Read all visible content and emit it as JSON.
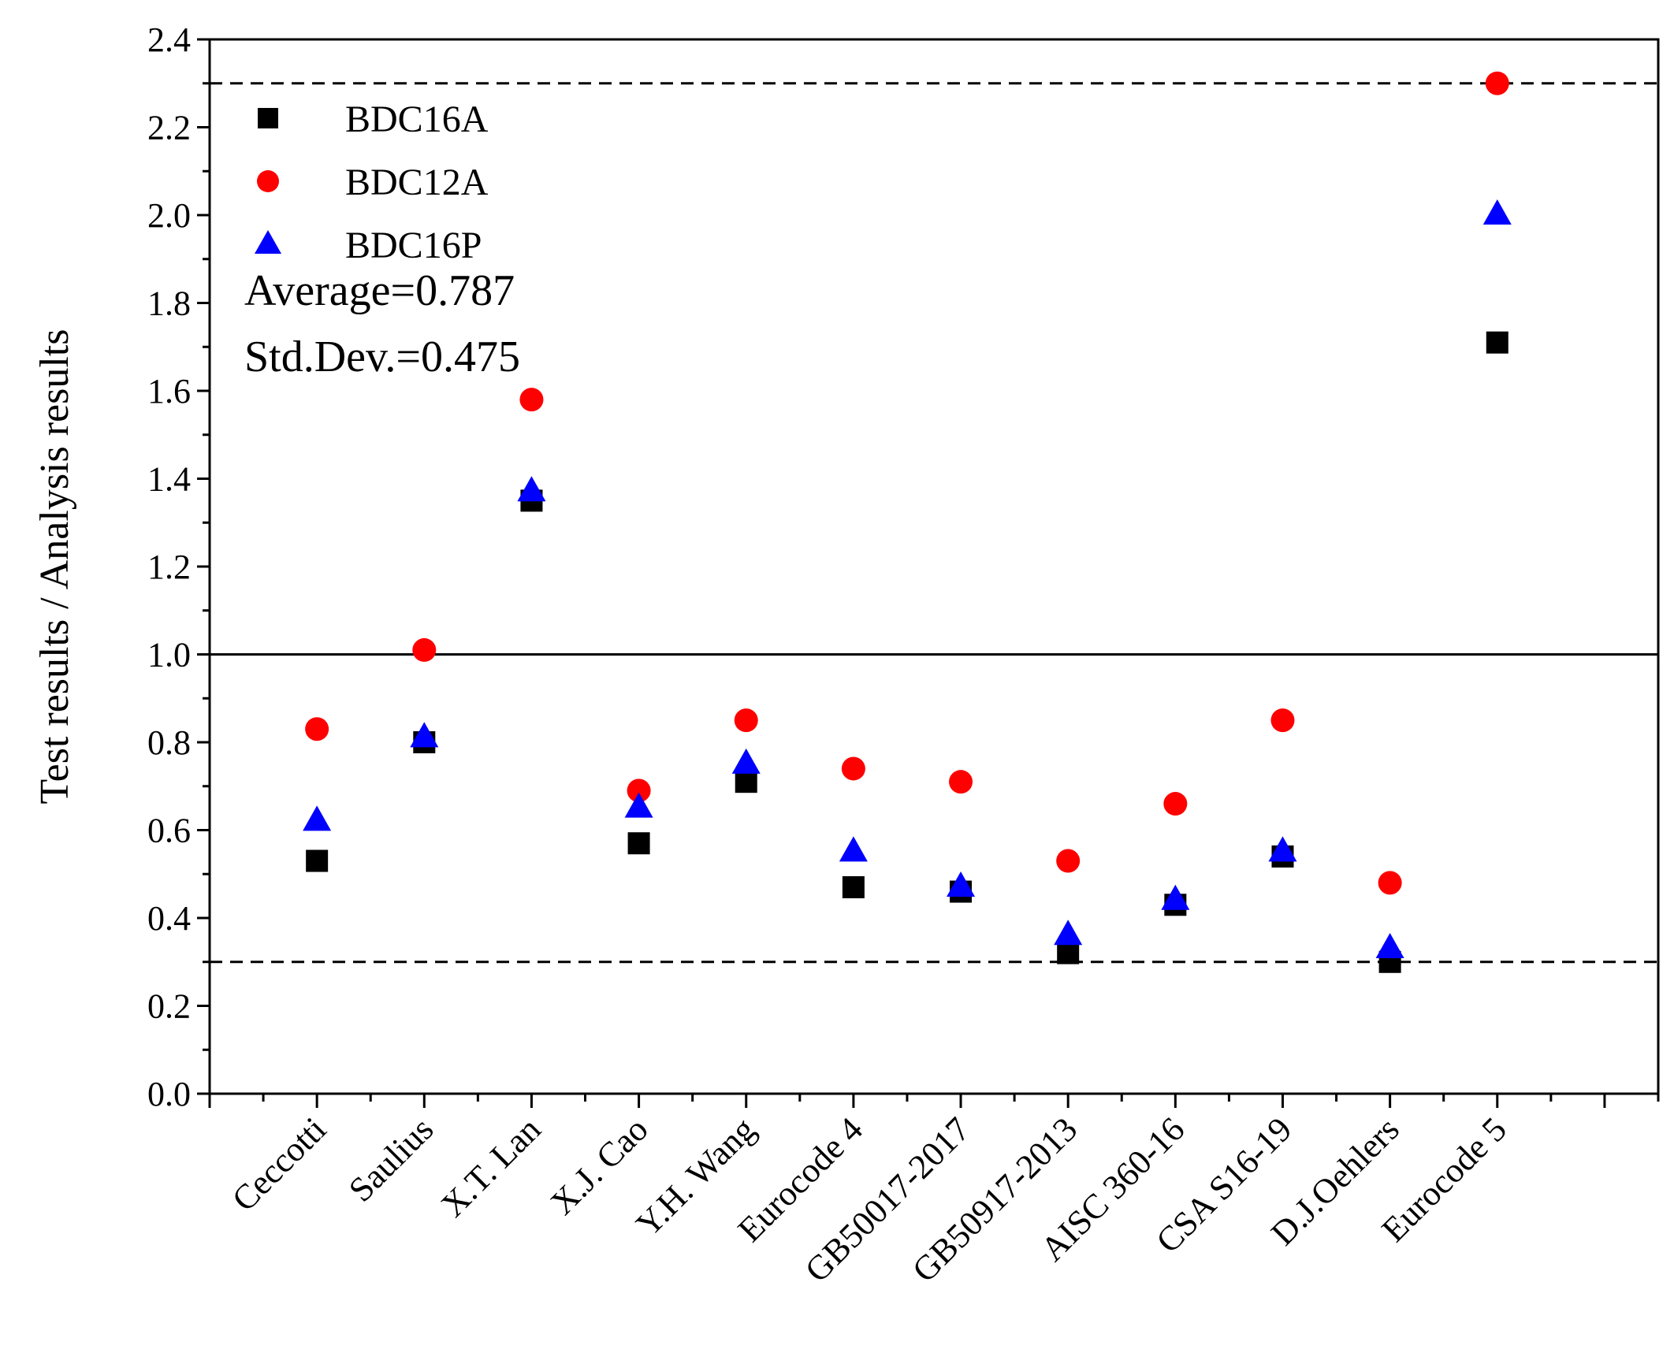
{
  "chart_data": {
    "type": "scatter",
    "title": "",
    "xlabel": "",
    "ylabel": "Test results / Analysis results",
    "ylim": [
      0,
      2.4
    ],
    "yticks": [
      "0.0",
      "0.2",
      "0.4",
      "0.6",
      "0.8",
      "1.0",
      "1.2",
      "1.4",
      "1.6",
      "1.8",
      "2.0",
      "2.2",
      "2.4"
    ],
    "categories": [
      "Ceccotti",
      "Saulius",
      "X.T. Lan",
      "X.J. Cao",
      "Y.H. Wang",
      "Eurocode 4",
      "GB50017-2017",
      "GB50917-2013",
      "AISC 360-16",
      "CSA S16-19",
      "D.J.Oehlers",
      "Eurocode 5"
    ],
    "series": [
      {
        "name": "BDC16A",
        "marker": "square",
        "color": "#000000",
        "values": [
          0.53,
          0.8,
          1.35,
          0.57,
          0.71,
          0.47,
          0.46,
          0.32,
          0.43,
          0.54,
          0.3,
          1.71
        ]
      },
      {
        "name": "BDC12A",
        "marker": "circle",
        "color": "#ff0000",
        "values": [
          0.83,
          1.01,
          1.58,
          0.69,
          0.85,
          0.74,
          0.71,
          0.53,
          0.66,
          0.85,
          0.48,
          2.3
        ]
      },
      {
        "name": "BDC16P",
        "marker": "triangle",
        "color": "#0000ff",
        "values": [
          0.62,
          0.81,
          1.37,
          0.65,
          0.75,
          0.55,
          0.47,
          0.36,
          0.44,
          0.55,
          0.33,
          2.0
        ]
      }
    ],
    "reference_lines": [
      {
        "value": 2.3,
        "style": "dashed"
      },
      {
        "value": 1.0,
        "style": "solid"
      },
      {
        "value": 0.3,
        "style": "dashed"
      }
    ],
    "annotations": [
      "Average=0.787",
      "Std.Dev.=0.475"
    ],
    "legend_position": "top-left",
    "grid": false
  }
}
